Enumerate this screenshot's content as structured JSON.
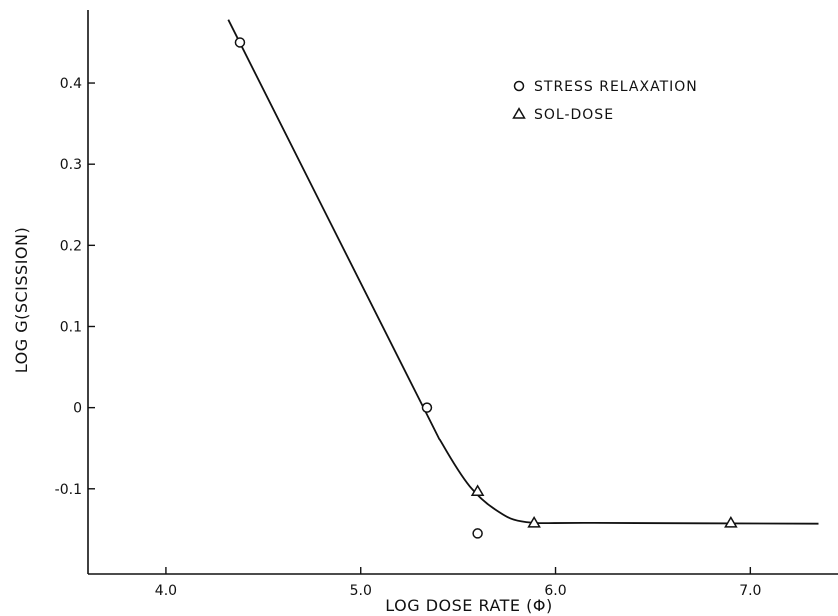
{
  "chart_data": {
    "type": "scatter",
    "xlabel": "LOG DOSE RATE (Φ)",
    "ylabel": "LOG G(SCISSION)",
    "xlim": [
      3.6,
      7.45
    ],
    "ylim": [
      -0.205,
      0.49
    ],
    "xticks": [
      4.0,
      5.0,
      6.0,
      7.0
    ],
    "xtick_labels": [
      "4.0",
      "5.0",
      "6.0",
      "7.0"
    ],
    "yticks": [
      0.4,
      0.3,
      0.2,
      0.1,
      0.0,
      -0.1
    ],
    "ytick_labels": [
      "0.4",
      "0.3",
      "0.2",
      "0.1",
      "0",
      "-0.1"
    ],
    "grid": false,
    "legend_position": "top-right",
    "series": [
      {
        "name": "STRESS RELAXATION",
        "marker": "circle",
        "x": [
          4.38,
          5.34,
          5.6
        ],
        "y": [
          0.45,
          0.0,
          -0.155
        ]
      },
      {
        "name": "SOL-DOSE",
        "marker": "triangle",
        "x": [
          5.6,
          5.89,
          6.9
        ],
        "y": [
          -0.103,
          -0.142,
          -0.142
        ]
      }
    ],
    "fit_curve": {
      "x": [
        4.32,
        5.28,
        5.42,
        5.56,
        5.7,
        5.85,
        6.2,
        7.35
      ],
      "y": [
        0.478,
        0.02,
        -0.045,
        -0.097,
        -0.127,
        -0.141,
        -0.142,
        -0.143
      ]
    }
  }
}
